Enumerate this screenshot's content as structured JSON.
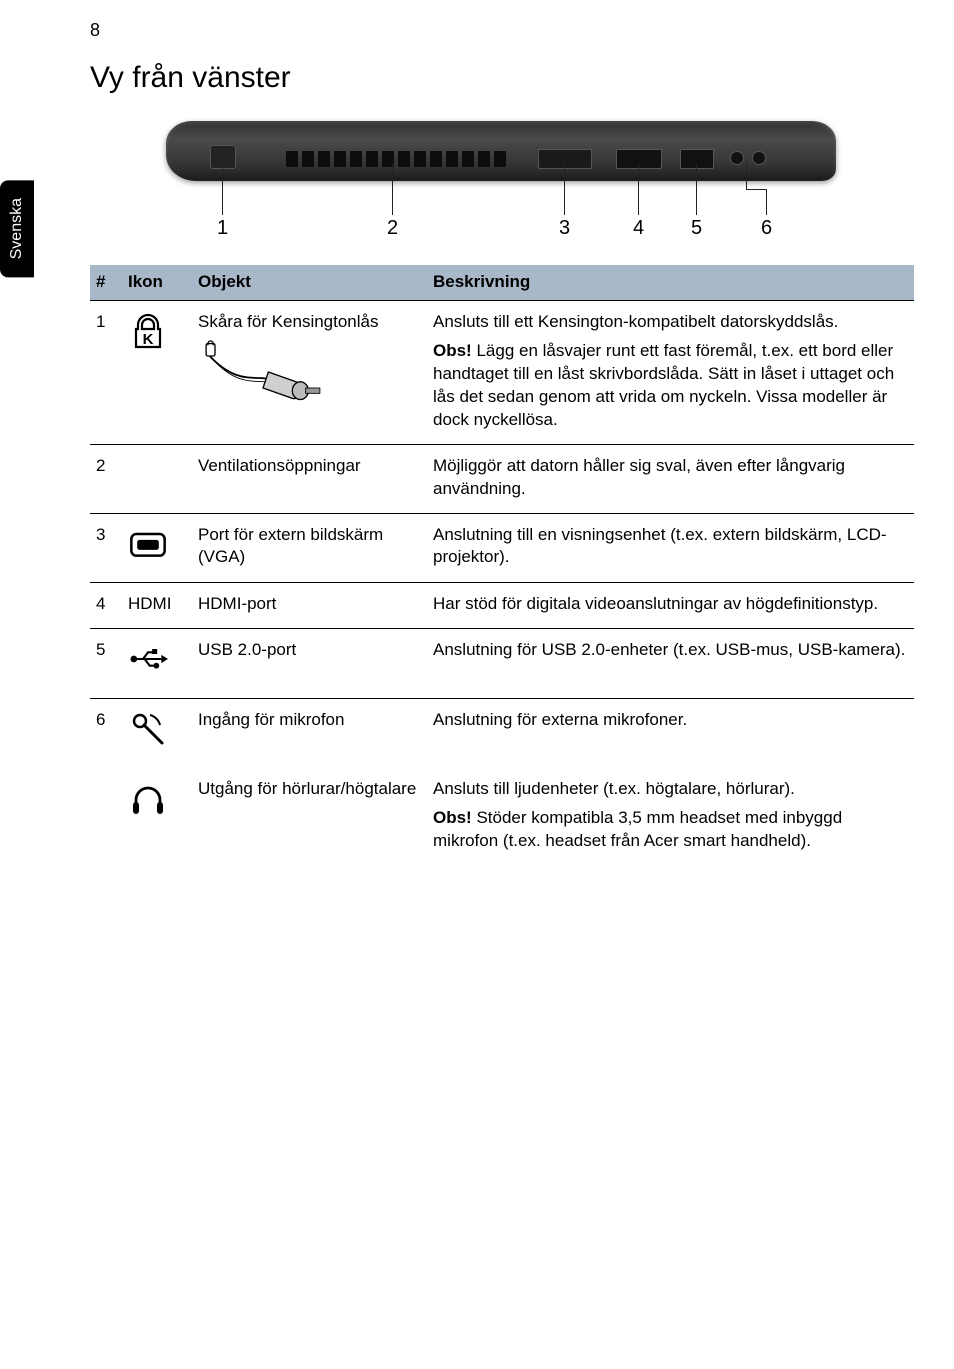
{
  "page_number": "8",
  "side_tab": "Svenska",
  "title": "Vy från vänster",
  "diagram": {
    "callouts": [
      "1",
      "2",
      "3",
      "4",
      "5",
      "6"
    ]
  },
  "table": {
    "headers": {
      "num": "#",
      "icon": "Ikon",
      "object": "Objekt",
      "desc": "Beskrivning"
    },
    "rows": [
      {
        "num": "1",
        "icon": "kensington-slot-icon",
        "object": "Skåra för Kensingtonlås",
        "desc": "Ansluts till ett Kensington-kompatibelt datorskyddslås.",
        "obs_label": "Obs!",
        "obs": " Lägg en låsvajer runt ett fast föremål, t.ex. ett bord eller handtaget till en låst skrivbordslåda. Sätt in låset i uttaget och lås det sedan genom att vrida om nyckeln. Vissa modeller är dock nyckellösa.",
        "has_art": true
      },
      {
        "num": "2",
        "icon": "",
        "object": "Ventilationsöppningar",
        "desc": "Möjliggör att datorn håller sig sval, även efter långvarig användning."
      },
      {
        "num": "3",
        "icon": "vga-icon",
        "object": "Port för extern bildskärm (VGA)",
        "desc": "Anslutning till en visningsenhet (t.ex. extern bildskärm, LCD-projektor)."
      },
      {
        "num": "4",
        "icon_text": "HDMI",
        "object": "HDMI-port",
        "desc": "Har stöd för digitala videoanslutningar av högdefinitionstyp."
      },
      {
        "num": "5",
        "icon": "usb-icon",
        "object": "USB 2.0-port",
        "desc": "Anslutning för USB 2.0-enheter (t.ex. USB-mus, USB-kamera)."
      },
      {
        "num": "6",
        "icon": "mic-icon",
        "object": "Ingång för mikrofon",
        "desc": "Anslutning för externa mikrofoner."
      },
      {
        "num": "",
        "icon": "headphone-icon",
        "object": "Utgång för hörlurar/högtalare",
        "desc": "Ansluts till ljudenheter (t.ex. högtalare, hörlurar).",
        "obs_label": "Obs!",
        "obs": " Stöder kompatibla 3,5 mm headset med inbyggd mikrofon (t.ex. headset från Acer smart handheld).",
        "no_border": true
      }
    ]
  }
}
